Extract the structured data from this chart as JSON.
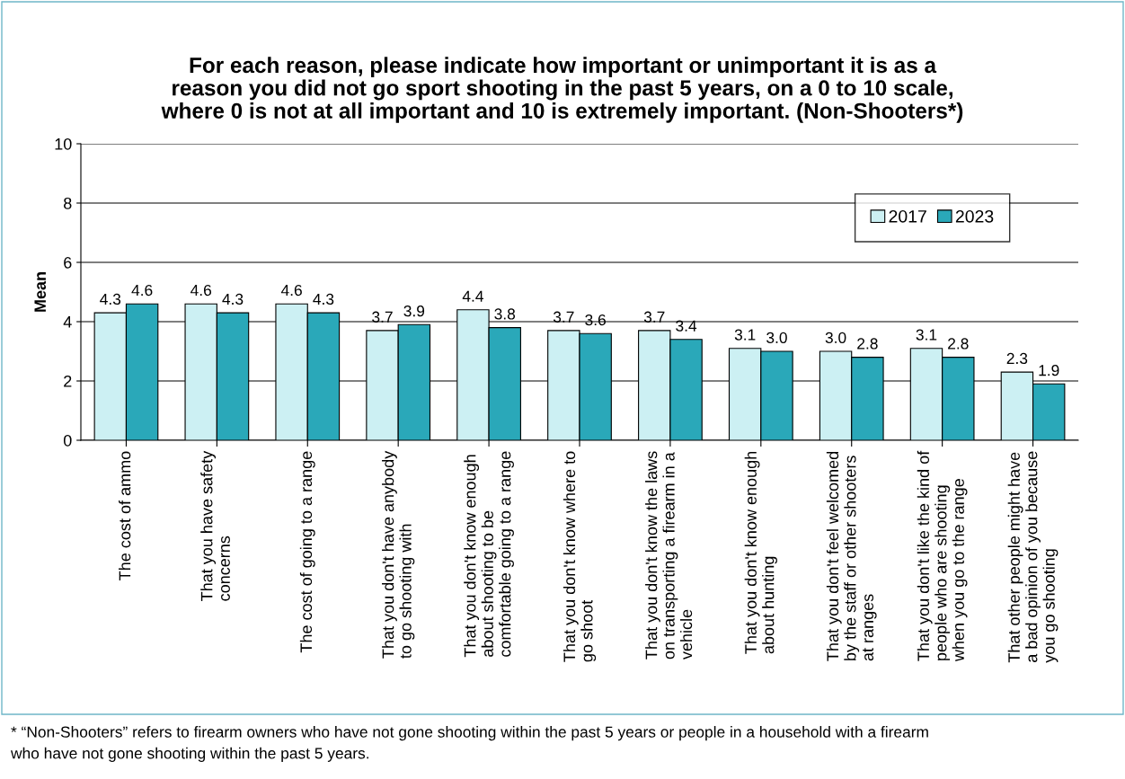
{
  "chart_data": {
    "type": "bar",
    "title": "For each reason, please indicate how important or unimportant it is as a\nreason you did not go sport shooting in the past 5 years, on a 0 to 10 scale,\nwhere 0 is not at all important and 10 is extremely important. (Non-Shooters*)",
    "ylabel": "Mean",
    "categories": [
      "The cost of ammo",
      "That you have safety\nconcerns",
      "The cost of going to a range",
      "That you don't have anybody\nto go shooting with",
      "That you don't know enough\nabout shooting to be\ncomfortable going to a range",
      "That you don't know where to\ngo shoot",
      "That you don't know the laws\non transporting a firearm in a\nvehicle",
      "That you don't know enough\nabout hunting",
      "That you don't feel welcomed\nby the staff or other shooters\nat ranges",
      "That you don't like the kind of\npeople who are shooting\nwhen you go to the range",
      "That other people might have\na bad opinion of you because\nyou go shooting"
    ],
    "series": [
      {
        "name": "2017",
        "color": "#ccf0f3",
        "values": [
          4.3,
          4.6,
          4.6,
          3.7,
          4.4,
          3.7,
          3.7,
          3.1,
          3.0,
          3.1,
          2.3
        ],
        "value_labels": [
          "4.3",
          "4.6",
          "4.6",
          "3.7",
          "4.4",
          "3.7",
          "3.7",
          "3.1",
          "3.0",
          "3.1",
          "2.3"
        ]
      },
      {
        "name": "2023",
        "color": "#2aa8b9",
        "values": [
          4.6,
          4.3,
          4.3,
          3.9,
          3.8,
          3.6,
          3.4,
          3.0,
          2.8,
          2.8,
          1.9
        ],
        "value_labels": [
          "4.6",
          "4.3",
          "4.3",
          "3.9",
          "3.8",
          "3.6",
          "3.4",
          "3.0",
          "2.8",
          "2.8",
          "1.9"
        ]
      }
    ],
    "ylim": [
      0,
      10
    ],
    "yticks": [
      0,
      2,
      4,
      6,
      8,
      10
    ],
    "grid": "y",
    "legend": "top right",
    "annotations": [
      "* “Non-Shooters” refers to firearm owners who have not gone shooting within the past 5 years or people in a household with a firearm\nwho have not gone shooting within the past 5 years."
    ]
  }
}
